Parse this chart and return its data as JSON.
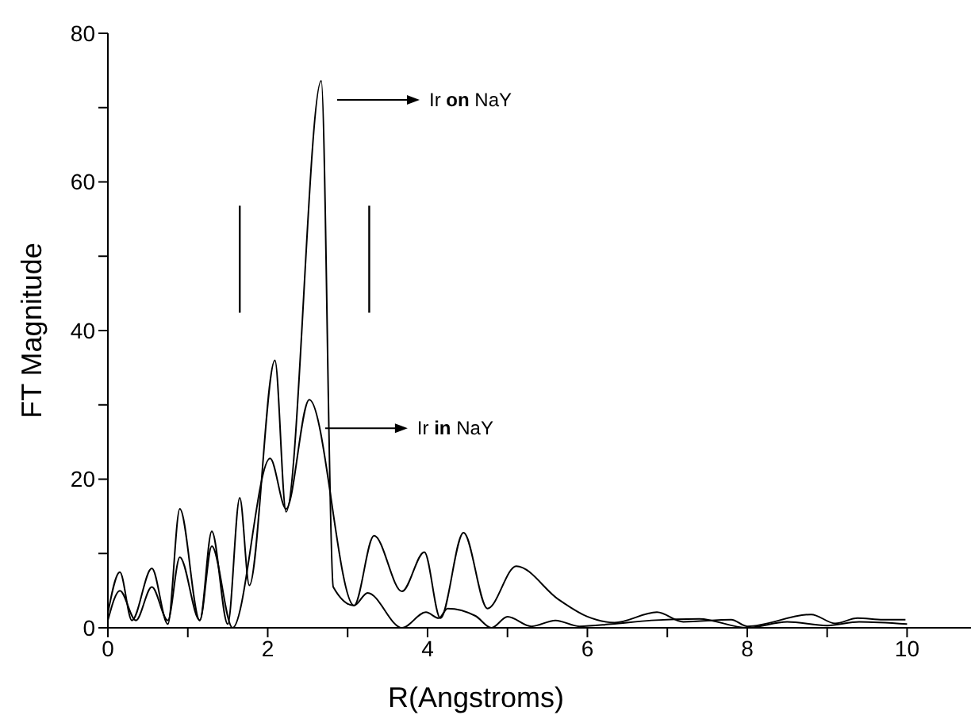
{
  "chart_data": {
    "type": "line",
    "xlabel": "R(Angstroms)",
    "ylabel": "FT Magnitude",
    "xlim": [
      0,
      10.8
    ],
    "xticks": [
      0,
      {
        "value": 1,
        "label": null
      },
      2,
      {
        "value": 3,
        "label": null
      },
      4,
      {
        "value": 5,
        "label": null
      },
      6,
      {
        "value": 7,
        "label": null
      },
      8,
      {
        "value": 9,
        "label": null
      },
      10
    ],
    "ylim": [
      0,
      80
    ],
    "yticks": [
      0,
      {
        "value": 10,
        "label": null
      },
      20,
      {
        "value": 30,
        "label": null
      },
      40,
      {
        "value": 50,
        "label": null
      },
      60,
      {
        "value": 70,
        "label": null
      },
      80
    ],
    "legend": "top",
    "marker": "none",
    "line_style": "solid",
    "ref_lines": [
      {
        "axis": "x",
        "value": 1.65
      },
      {
        "axis": "x",
        "value": 3.27
      }
    ],
    "series": [
      {
        "name": "Ir on NaY",
        "color": "#000000",
        "x": [
          0,
          0.15,
          0.3,
          0.55,
          0.75,
          0.9,
          1.15,
          1.3,
          1.5,
          1.65,
          1.77,
          2.09,
          2.23,
          2.67,
          2.82,
          3.08,
          3.25,
          3.68,
          3.98,
          4.14,
          4.25,
          4.6,
          4.8,
          5.0,
          5.3,
          5.6,
          5.9,
          6.3,
          6.8,
          7.4,
          8.0,
          8.5,
          9.0,
          9.4,
          10.0
        ],
        "values": [
          2,
          7.5,
          1,
          8,
          0.5,
          16,
          1,
          13,
          0.5,
          17.5,
          5.7,
          36,
          15.6,
          73.6,
          5.5,
          3,
          4.7,
          0,
          2.1,
          1.3,
          2.6,
          1.6,
          0,
          1.5,
          0.2,
          1.0,
          0.2,
          0.5,
          1.0,
          1.2,
          0,
          0.8,
          0.3,
          0.8,
          0.5
        ]
      },
      {
        "name": "Ir in NaY",
        "color": "#000000",
        "x": [
          0,
          0.15,
          0.35,
          0.55,
          0.75,
          0.9,
          1.15,
          1.3,
          1.56,
          2.03,
          2.23,
          2.52,
          3.08,
          3.33,
          3.68,
          3.96,
          4.16,
          4.45,
          4.75,
          5.11,
          5.64,
          6.0,
          6.34,
          6.87,
          7.2,
          7.8,
          8.0,
          8.8,
          9.1,
          9.38,
          9.7,
          9.98
        ],
        "values": [
          1,
          5,
          1,
          5.5,
          1,
          9.5,
          1,
          11,
          0,
          22.8,
          16,
          30.7,
          3,
          12.4,
          4.9,
          10.2,
          1.3,
          12.8,
          2.6,
          8.3,
          3.8,
          1.5,
          0.7,
          2.1,
          0.8,
          1.1,
          0.2,
          1.8,
          0.6,
          1.3,
          1.1,
          1.1
        ]
      }
    ]
  }
}
